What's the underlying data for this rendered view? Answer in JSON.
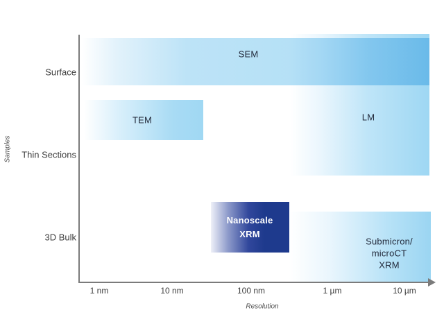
{
  "chart_data": {
    "type": "bar",
    "subtype": "horizontal-range-regions",
    "title": "",
    "xlabel": "Resolution",
    "ylabel": "Samples",
    "x_scale": "log",
    "x_ticks": [
      "1 nm",
      "10 nm",
      "100 nm",
      "1 µm",
      "10 µm"
    ],
    "y_categories": [
      "Surface",
      "Thin Sections",
      "3D Bulk"
    ],
    "grid": false,
    "legend": false,
    "series": [
      {
        "name": "SEM",
        "samples": [
          "Surface"
        ],
        "resolution_min": "~1 nm",
        "resolution_max": ">10 µm"
      },
      {
        "name": "TEM",
        "samples": [
          "Thin Sections"
        ],
        "resolution_min": "~1 nm",
        "resolution_max": "~25 nm"
      },
      {
        "name": "LM",
        "samples": [
          "Surface",
          "Thin Sections"
        ],
        "resolution_min": "~300 nm",
        "resolution_max": ">10 µm"
      },
      {
        "name": "Nanoscale XRM",
        "samples": [
          "3D Bulk"
        ],
        "resolution_min": "~30 nm",
        "resolution_max": "~300 nm"
      },
      {
        "name": "Submicron/microCT XRM",
        "samples": [
          "3D Bulk"
        ],
        "resolution_min": "~300 nm",
        "resolution_max": ">10 µm"
      }
    ]
  },
  "axis": {
    "x_label": "Resolution",
    "y_label": "Samples",
    "x_ticks": [
      "1 nm",
      "10 nm",
      "100 nm",
      "1 µm",
      "10 µm"
    ],
    "y_categories": [
      "Surface",
      "Thin Sections",
      "3D Bulk"
    ]
  },
  "bars": {
    "sem": {
      "label": "SEM"
    },
    "tem": {
      "label": "TEM"
    },
    "lm": {
      "label": "LM"
    },
    "nanoscale": {
      "line1": "Nanoscale",
      "line2": "XRM"
    },
    "submicron": {
      "line1": "Submicron/",
      "line2": "microCT",
      "line3": "XRM"
    }
  },
  "colors": {
    "light_blue": "#9ed7f3",
    "dark_blue": "#1e3a8d",
    "axis_gray": "#7b7b7b",
    "text_dark": "#3d3d3d"
  }
}
